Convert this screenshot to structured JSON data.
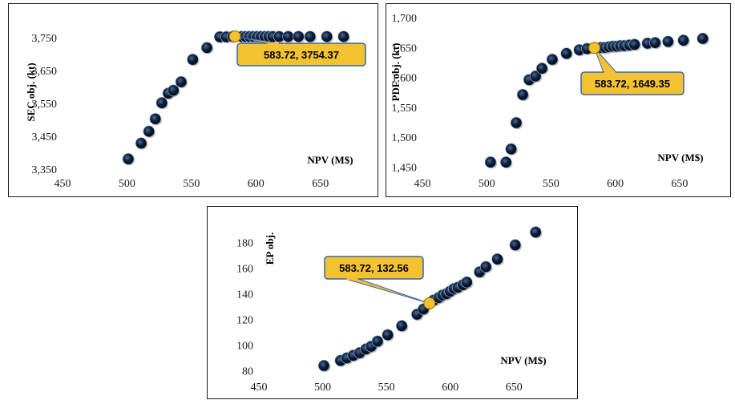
{
  "chart_data": [
    {
      "type": "scatter",
      "title": "",
      "xlabel": "NPV (M$)",
      "ylabel": "SEC obj. (kt)",
      "xlim": [
        450,
        680
      ],
      "ylim": [
        3350,
        3775
      ],
      "xticks": [
        "450",
        "500",
        "550",
        "600",
        "650"
      ],
      "yticks": [
        "3,350",
        "3,450",
        "3,550",
        "3,650",
        "3,750"
      ],
      "grid": false,
      "marker_color": "#0b1d3a",
      "highlight_color": "#f2c230",
      "series": [
        {
          "x": [
            501,
            511,
            517,
            522,
            527,
            532,
            536,
            542,
            551,
            562,
            572,
            577,
            582,
            583.72,
            589,
            592,
            595,
            598,
            601,
            604,
            607,
            610,
            613,
            618,
            625,
            633,
            642,
            655,
            668
          ],
          "y": [
            3381,
            3429,
            3465,
            3503,
            3552,
            3581,
            3590,
            3616,
            3684,
            3720,
            3753,
            3753,
            3754,
            3754.37,
            3754,
            3754,
            3754,
            3754,
            3754,
            3754,
            3754,
            3754,
            3754,
            3754,
            3754,
            3754,
            3754,
            3754,
            3754
          ]
        }
      ],
      "highlight": {
        "x": 583.72,
        "y": 3754.37,
        "label": "583.72, 3754.37"
      }
    },
    {
      "type": "scatter",
      "title": "",
      "xlabel": "NPV (M$)",
      "ylabel": "PDF obj. (kt)",
      "xlim": [
        450,
        680
      ],
      "ylim": [
        1445,
        1700
      ],
      "xticks": [
        "450",
        "500",
        "550",
        "600",
        "650"
      ],
      "yticks": [
        "1,450",
        "1,500",
        "1,550",
        "1,600",
        "1,650",
        "1,700"
      ],
      "grid": false,
      "marker_color": "#0b1d3a",
      "highlight_color": "#f2c230",
      "series": [
        {
          "x": [
            503,
            515,
            519,
            523,
            528,
            533,
            538,
            543,
            551,
            562,
            572,
            578,
            583.72,
            589,
            592,
            595,
            598,
            601,
            604,
            607,
            611,
            615,
            625,
            631,
            641,
            653,
            668
          ],
          "y": [
            1458,
            1458,
            1480,
            1524,
            1571,
            1596,
            1602,
            1615,
            1630,
            1640,
            1646,
            1648,
            1649.35,
            1650,
            1650,
            1651,
            1652,
            1652,
            1653,
            1653,
            1654,
            1655,
            1657,
            1658,
            1660,
            1662,
            1665
          ]
        }
      ],
      "highlight": {
        "x": 583.72,
        "y": 1649.35,
        "label": "583.72, 1649.35"
      }
    },
    {
      "type": "scatter",
      "title": "",
      "xlabel": "NPV (M$)",
      "ylabel": "EP obj.",
      "xlim": [
        450,
        680
      ],
      "ylim": [
        76,
        194
      ],
      "xticks": [
        "450",
        "500",
        "550",
        "600",
        "650"
      ],
      "yticks": [
        "80",
        "100",
        "120",
        "140",
        "160",
        "180"
      ],
      "grid": false,
      "marker_color": "#0b1d3a",
      "highlight_color": "#f2c230",
      "series": [
        {
          "x": [
            501,
            514,
            519,
            524,
            529,
            534,
            538,
            543,
            551,
            562,
            574,
            579,
            583.72,
            587,
            591,
            594,
            597,
            600,
            603,
            606,
            610,
            613,
            623,
            628,
            637,
            651,
            667
          ],
          "y": [
            84,
            88,
            90,
            92,
            94,
            97,
            99,
            103,
            108,
            115,
            124,
            128,
            132.56,
            135,
            137,
            139,
            140,
            142,
            144,
            145,
            147,
            149,
            157,
            161,
            167,
            178,
            188
          ]
        }
      ],
      "highlight": {
        "x": 583.72,
        "y": 132.56,
        "label": "583.72, 132.56"
      }
    }
  ]
}
